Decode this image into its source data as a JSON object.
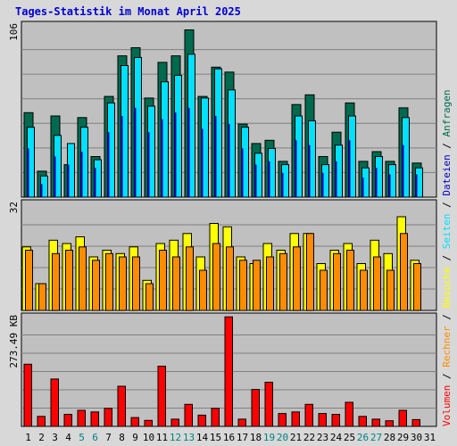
{
  "chart_data": {
    "type": "bar",
    "title": "Tages-Statistik im Monat April 2025",
    "categories": [
      "1",
      "2",
      "3",
      "4",
      "5",
      "6",
      "7",
      "8",
      "9",
      "10",
      "11",
      "12",
      "13",
      "14",
      "15",
      "16",
      "17",
      "18",
      "19",
      "20",
      "21",
      "22",
      "23",
      "24",
      "25",
      "26",
      "27",
      "28",
      "29",
      "30",
      "31"
    ],
    "weekend_days": [
      "5",
      "6",
      "12",
      "13",
      "19",
      "20",
      "26",
      "27"
    ],
    "panels": [
      {
        "name": "requests-panel",
        "axis_label": "106",
        "ylim": [
          0,
          106
        ],
        "series": [
          {
            "name": "Anfragen",
            "color": "#006a4e",
            "values": [
              52,
              16,
              50,
              20,
              49,
              25,
              62,
              87,
              92,
              61,
              83,
              87,
              103,
              62,
              80,
              77,
              45,
              33,
              35,
              22,
              57,
              63,
              25,
              40,
              58,
              22,
              28,
              22,
              55,
              21,
              0
            ]
          },
          {
            "name": "Seiten",
            "color": "#00e0ff",
            "values": [
              43,
              13,
              38,
              33,
              43,
              23,
              58,
              81,
              86,
              56,
              71,
              75,
              88,
              61,
              79,
              66,
              43,
              27,
              30,
              20,
              50,
              47,
              20,
              32,
              50,
              18,
              25,
              20,
              49,
              18,
              0
            ]
          },
          {
            "name": "Dateien",
            "color": "#0000c0",
            "values": [
              30,
              8,
              25,
              20,
              28,
              18,
              40,
              50,
              55,
              40,
              48,
              52,
              55,
              42,
              50,
              45,
              30,
              20,
              22,
              15,
              35,
              32,
              15,
              22,
              35,
              12,
              18,
              14,
              32,
              14,
              0
            ]
          }
        ]
      },
      {
        "name": "visits-panel",
        "axis_label": "32",
        "ylim": [
          0,
          32
        ],
        "series": [
          {
            "name": "Besuche",
            "color": "#ffff00",
            "values": [
              19,
              8,
              21,
              20,
              22,
              16,
              18,
              17,
              19,
              9,
              20,
              21,
              23,
              16,
              26,
              25,
              16,
              14,
              20,
              18,
              23,
              23,
              14,
              18,
              20,
              14,
              21,
              17,
              28,
              15,
              0
            ]
          },
          {
            "name": "Rechner",
            "color": "#ff8c00",
            "values": [
              18,
              8,
              17,
              18,
              19,
              15,
              17,
              16,
              16,
              8,
              18,
              16,
              19,
              12,
              20,
              19,
              15,
              15,
              16,
              17,
              19,
              23,
              12,
              17,
              18,
              12,
              16,
              12,
              23,
              14,
              0
            ]
          }
        ]
      },
      {
        "name": "volume-panel",
        "axis_label": "273.49 KB",
        "ylim": [
          0,
          273.49
        ],
        "series": [
          {
            "name": "Volumen",
            "color": "#ff0000",
            "values": [
              155,
              25,
              118,
              30,
              40,
              36,
              45,
              100,
              22,
              15,
              150,
              18,
              55,
              28,
              45,
              273,
              18,
              92,
              110,
              32,
              36,
              55,
              32,
              30,
              60,
              25,
              18,
              14,
              40,
              17,
              0
            ]
          }
        ]
      }
    ],
    "right_legend": [
      {
        "name": "Volumen",
        "color": "#ff0000"
      },
      {
        "name": "Rechner",
        "color": "#ff8c00"
      },
      {
        "name": "Besuche",
        "color": "#ffff00"
      },
      {
        "name": "Seiten",
        "color": "#00e0ff"
      },
      {
        "name": "Dateien",
        "color": "#0000c0"
      },
      {
        "name": "Anfragen",
        "color": "#006a4e"
      }
    ],
    "legend_separator": "/",
    "colors": {
      "title": "#0000d0",
      "background": "#d8d8d8",
      "plot": "#c0c0c0",
      "grid": "#808080",
      "weekday_label": "#000000",
      "weekend_label": "#008080"
    },
    "grid": true
  }
}
